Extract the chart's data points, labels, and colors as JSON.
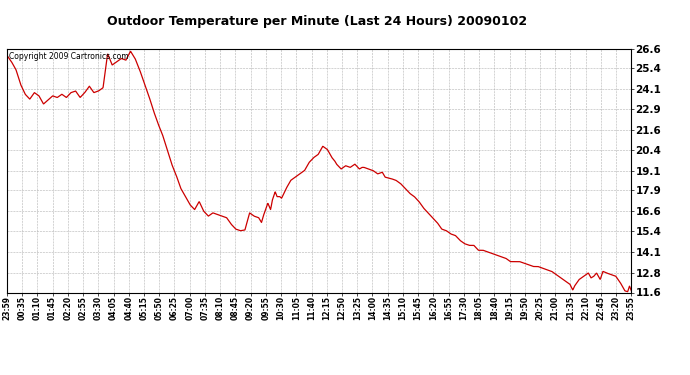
{
  "title": "Outdoor Temperature per Minute (Last 24 Hours) 20090102",
  "copyright_text": "Copyright 2009 Cartronics.com",
  "line_color": "#cc0000",
  "background_color": "#ffffff",
  "grid_color": "#aaaaaa",
  "ylim": [
    11.6,
    26.6
  ],
  "yticks": [
    11.6,
    12.8,
    14.1,
    15.4,
    16.6,
    17.9,
    19.1,
    20.4,
    21.6,
    22.9,
    24.1,
    25.4,
    26.6
  ],
  "xtick_labels": [
    "23:59",
    "00:35",
    "01:10",
    "01:45",
    "02:20",
    "02:55",
    "03:30",
    "04:05",
    "04:40",
    "05:15",
    "05:50",
    "06:25",
    "07:00",
    "07:35",
    "08:10",
    "08:45",
    "09:20",
    "09:55",
    "10:30",
    "11:05",
    "11:40",
    "12:15",
    "12:50",
    "13:25",
    "14:00",
    "14:35",
    "15:10",
    "15:45",
    "16:20",
    "16:55",
    "17:30",
    "18:05",
    "18:40",
    "19:15",
    "19:50",
    "20:25",
    "21:00",
    "21:35",
    "22:10",
    "22:45",
    "23:20",
    "23:55"
  ],
  "key_points": [
    [
      0,
      26.2
    ],
    [
      5,
      25.8
    ],
    [
      10,
      25.3
    ],
    [
      15,
      24.4
    ],
    [
      20,
      23.8
    ],
    [
      25,
      23.5
    ],
    [
      30,
      23.9
    ],
    [
      35,
      23.7
    ],
    [
      40,
      23.2
    ],
    [
      50,
      23.7
    ],
    [
      55,
      23.6
    ],
    [
      60,
      23.8
    ],
    [
      65,
      23.6
    ],
    [
      70,
      23.9
    ],
    [
      75,
      24.0
    ],
    [
      80,
      23.6
    ],
    [
      85,
      23.9
    ],
    [
      90,
      24.3
    ],
    [
      95,
      23.9
    ],
    [
      100,
      24.0
    ],
    [
      105,
      24.2
    ],
    [
      110,
      26.3
    ],
    [
      115,
      25.6
    ],
    [
      120,
      25.8
    ],
    [
      125,
      26.0
    ],
    [
      130,
      25.9
    ],
    [
      135,
      26.45
    ],
    [
      140,
      26.0
    ],
    [
      145,
      25.3
    ],
    [
      150,
      24.5
    ],
    [
      155,
      23.7
    ],
    [
      160,
      22.8
    ],
    [
      165,
      22.0
    ],
    [
      170,
      21.3
    ],
    [
      175,
      20.4
    ],
    [
      180,
      19.5
    ],
    [
      185,
      18.8
    ],
    [
      190,
      18.0
    ],
    [
      195,
      17.5
    ],
    [
      200,
      17.0
    ],
    [
      205,
      16.7
    ],
    [
      210,
      17.2
    ],
    [
      215,
      16.6
    ],
    [
      220,
      16.3
    ],
    [
      225,
      16.5
    ],
    [
      230,
      16.4
    ],
    [
      235,
      16.3
    ],
    [
      240,
      16.2
    ],
    [
      245,
      15.8
    ],
    [
      250,
      15.5
    ],
    [
      255,
      15.4
    ],
    [
      260,
      15.45
    ],
    [
      265,
      16.5
    ],
    [
      270,
      16.3
    ],
    [
      275,
      16.2
    ],
    [
      278,
      15.9
    ],
    [
      280,
      16.3
    ],
    [
      285,
      17.1
    ],
    [
      288,
      16.7
    ],
    [
      290,
      17.3
    ],
    [
      293,
      17.8
    ],
    [
      295,
      17.5
    ],
    [
      298,
      17.5
    ],
    [
      300,
      17.4
    ],
    [
      305,
      18.0
    ],
    [
      310,
      18.5
    ],
    [
      315,
      18.7
    ],
    [
      320,
      18.9
    ],
    [
      325,
      19.1
    ],
    [
      330,
      19.6
    ],
    [
      335,
      19.9
    ],
    [
      340,
      20.1
    ],
    [
      345,
      20.6
    ],
    [
      350,
      20.4
    ],
    [
      355,
      19.9
    ],
    [
      358,
      19.7
    ],
    [
      360,
      19.5
    ],
    [
      365,
      19.2
    ],
    [
      370,
      19.4
    ],
    [
      375,
      19.3
    ],
    [
      380,
      19.5
    ],
    [
      385,
      19.2
    ],
    [
      388,
      19.3
    ],
    [
      390,
      19.3
    ],
    [
      395,
      19.2
    ],
    [
      400,
      19.1
    ],
    [
      405,
      18.9
    ],
    [
      410,
      19.0
    ],
    [
      413,
      18.7
    ],
    [
      420,
      18.6
    ],
    [
      425,
      18.5
    ],
    [
      430,
      18.3
    ],
    [
      435,
      18.0
    ],
    [
      440,
      17.7
    ],
    [
      445,
      17.5
    ],
    [
      450,
      17.2
    ],
    [
      455,
      16.8
    ],
    [
      460,
      16.5
    ],
    [
      465,
      16.2
    ],
    [
      470,
      15.9
    ],
    [
      475,
      15.5
    ],
    [
      480,
      15.4
    ],
    [
      485,
      15.2
    ],
    [
      490,
      15.1
    ],
    [
      495,
      14.8
    ],
    [
      500,
      14.6
    ],
    [
      505,
      14.5
    ],
    [
      510,
      14.5
    ],
    [
      515,
      14.2
    ],
    [
      520,
      14.2
    ],
    [
      525,
      14.1
    ],
    [
      530,
      14.0
    ],
    [
      535,
      13.9
    ],
    [
      540,
      13.8
    ],
    [
      545,
      13.7
    ],
    [
      550,
      13.5
    ],
    [
      555,
      13.5
    ],
    [
      560,
      13.5
    ],
    [
      565,
      13.4
    ],
    [
      570,
      13.3
    ],
    [
      575,
      13.2
    ],
    [
      580,
      13.2
    ],
    [
      585,
      13.1
    ],
    [
      590,
      13.0
    ],
    [
      595,
      12.9
    ],
    [
      600,
      12.7
    ],
    [
      605,
      12.5
    ],
    [
      610,
      12.3
    ],
    [
      615,
      12.1
    ],
    [
      618,
      11.75
    ],
    [
      620,
      12.0
    ],
    [
      625,
      12.4
    ],
    [
      630,
      12.6
    ],
    [
      635,
      12.8
    ],
    [
      638,
      12.5
    ],
    [
      641,
      12.6
    ],
    [
      644,
      12.8
    ],
    [
      648,
      12.4
    ],
    [
      651,
      12.9
    ],
    [
      655,
      12.8
    ],
    [
      660,
      12.7
    ],
    [
      665,
      12.6
    ],
    [
      670,
      12.2
    ],
    [
      675,
      11.7
    ],
    [
      678,
      11.65
    ],
    [
      680,
      12.0
    ],
    [
      682,
      11.7
    ]
  ]
}
